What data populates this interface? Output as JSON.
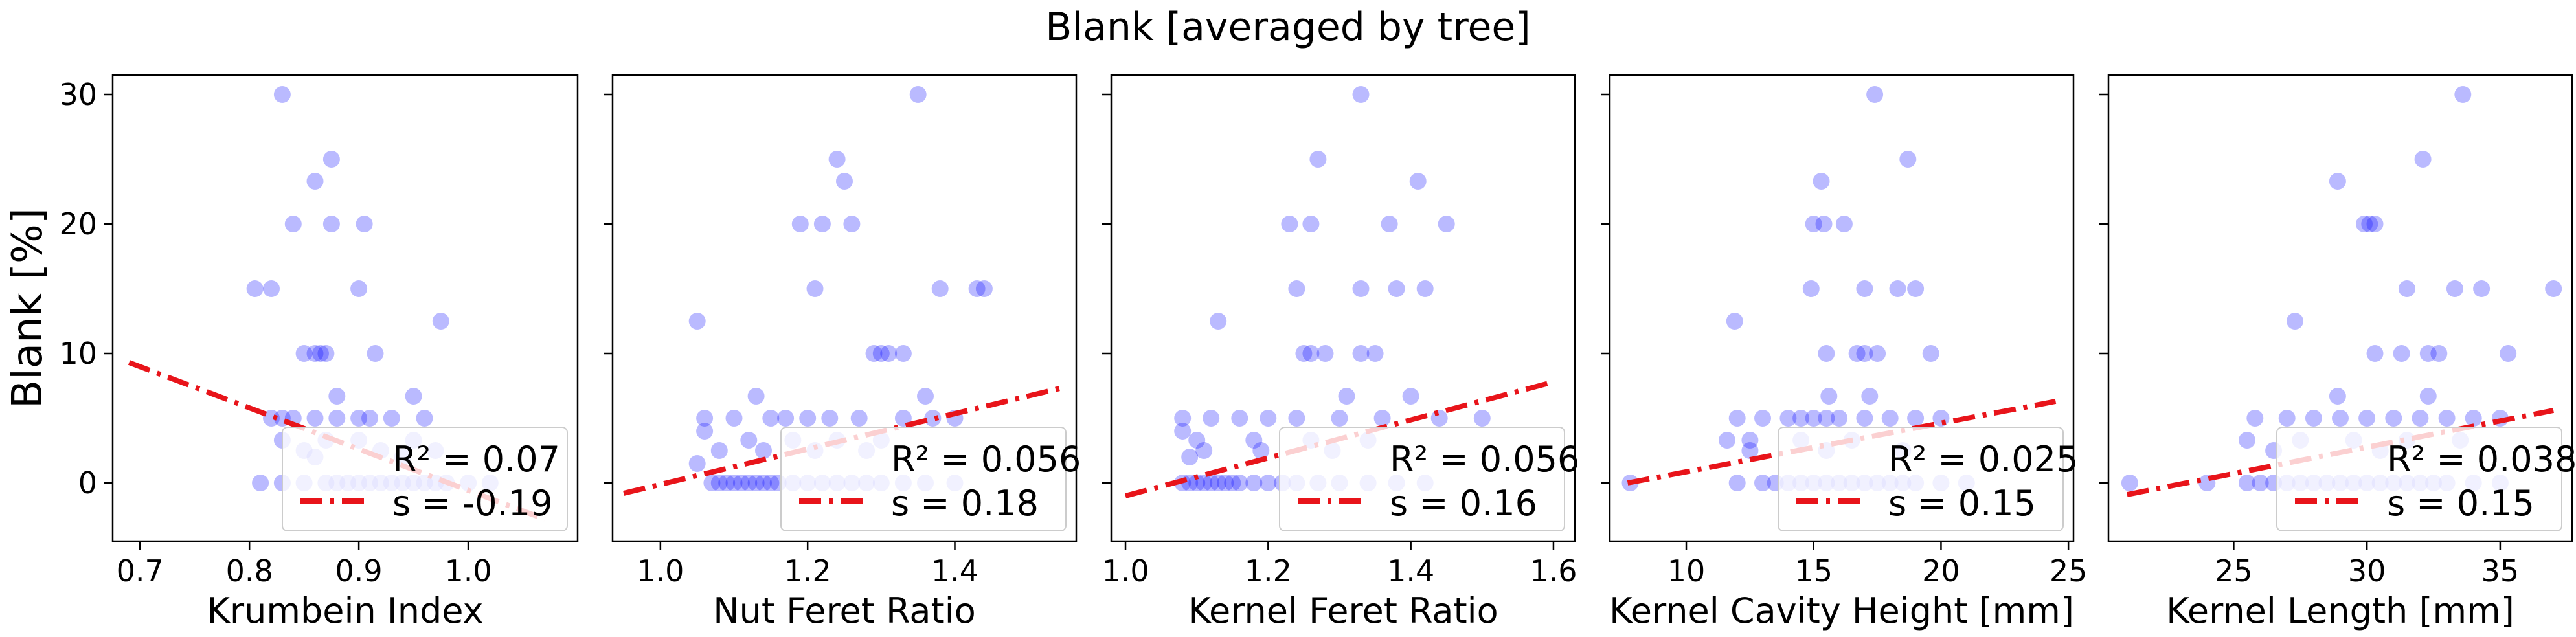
{
  "figure": {
    "title": "Blank [averaged by tree]",
    "ylabel": "Blank [%]"
  },
  "style": {
    "point_color": "#0000ff",
    "fit_color": "#e8141a"
  },
  "chart_data": [
    {
      "type": "scatter",
      "xlabel": "Krumbein Index",
      "ylabel": "Blank [%]",
      "xlim": [
        0.675,
        1.1
      ],
      "ylim": [
        -4.5,
        31.5
      ],
      "xticks": [
        "0.7",
        "0.8",
        "0.9",
        "1.0"
      ],
      "yticks": [
        "0",
        "10",
        "20",
        "30"
      ],
      "r2_text": "R² = 0.07",
      "s_text": "s   = -0.19",
      "fit": {
        "x": [
          0.69,
          1.07
        ],
        "y": [
          9.3,
          -2.8
        ]
      },
      "points": [
        [
          0.83,
          30
        ],
        [
          0.86,
          23.3
        ],
        [
          0.875,
          25
        ],
        [
          0.84,
          20
        ],
        [
          0.875,
          20
        ],
        [
          0.905,
          20
        ],
        [
          0.805,
          15
        ],
        [
          0.82,
          15
        ],
        [
          0.9,
          15
        ],
        [
          0.85,
          10
        ],
        [
          0.86,
          10
        ],
        [
          0.865,
          10
        ],
        [
          0.87,
          10
        ],
        [
          0.915,
          10
        ],
        [
          0.975,
          12.5
        ],
        [
          0.88,
          6.7
        ],
        [
          0.95,
          6.7
        ],
        [
          0.82,
          5
        ],
        [
          0.83,
          5
        ],
        [
          0.84,
          5
        ],
        [
          0.86,
          5
        ],
        [
          0.88,
          5
        ],
        [
          0.9,
          5
        ],
        [
          0.91,
          5
        ],
        [
          0.93,
          5
        ],
        [
          0.96,
          5
        ],
        [
          0.83,
          3.3
        ],
        [
          0.87,
          3.3
        ],
        [
          0.9,
          3.3
        ],
        [
          0.95,
          3.3
        ],
        [
          0.85,
          2.5
        ],
        [
          0.92,
          2.5
        ],
        [
          0.97,
          2.5
        ],
        [
          0.86,
          2
        ],
        [
          0.94,
          2
        ],
        [
          0.81,
          0
        ],
        [
          0.83,
          0
        ],
        [
          0.85,
          0
        ],
        [
          0.87,
          0
        ],
        [
          0.88,
          0
        ],
        [
          0.89,
          0
        ],
        [
          0.9,
          0
        ],
        [
          0.91,
          0
        ],
        [
          0.92,
          0
        ],
        [
          0.93,
          0
        ],
        [
          0.94,
          0
        ],
        [
          0.95,
          0
        ],
        [
          0.96,
          0
        ],
        [
          0.97,
          0
        ],
        [
          0.98,
          0
        ],
        [
          1.0,
          0
        ],
        [
          1.02,
          0
        ]
      ]
    },
    {
      "type": "scatter",
      "xlabel": "Nut Feret Ratio",
      "ylabel": "",
      "xlim": [
        0.935,
        1.565
      ],
      "ylim": [
        -4.5,
        31.5
      ],
      "xticks": [
        "1.0",
        "1.2",
        "1.4"
      ],
      "yticks": [
        "",
        "",
        "",
        ""
      ],
      "r2_text": "R² = 0.056",
      "s_text": "s   = 0.18",
      "fit": {
        "x": [
          0.95,
          1.55
        ],
        "y": [
          -0.8,
          7.4
        ]
      },
      "points": [
        [
          1.35,
          30
        ],
        [
          1.24,
          25
        ],
        [
          1.25,
          23.3
        ],
        [
          1.19,
          20
        ],
        [
          1.22,
          20
        ],
        [
          1.26,
          20
        ],
        [
          1.21,
          15
        ],
        [
          1.38,
          15
        ],
        [
          1.43,
          15
        ],
        [
          1.44,
          15
        ],
        [
          1.05,
          12.5
        ],
        [
          1.29,
          10
        ],
        [
          1.3,
          10
        ],
        [
          1.31,
          10
        ],
        [
          1.33,
          10
        ],
        [
          1.13,
          6.7
        ],
        [
          1.36,
          6.7
        ],
        [
          1.06,
          5
        ],
        [
          1.1,
          5
        ],
        [
          1.15,
          5
        ],
        [
          1.17,
          5
        ],
        [
          1.2,
          5
        ],
        [
          1.23,
          5
        ],
        [
          1.27,
          5
        ],
        [
          1.33,
          5
        ],
        [
          1.37,
          5
        ],
        [
          1.4,
          5
        ],
        [
          1.06,
          4
        ],
        [
          1.12,
          3.3
        ],
        [
          1.18,
          3.3
        ],
        [
          1.24,
          3.3
        ],
        [
          1.3,
          3.3
        ],
        [
          1.08,
          2.5
        ],
        [
          1.14,
          2.5
        ],
        [
          1.21,
          2.5
        ],
        [
          1.28,
          2.5
        ],
        [
          1.05,
          1.5
        ],
        [
          1.07,
          0
        ],
        [
          1.08,
          0
        ],
        [
          1.09,
          0
        ],
        [
          1.1,
          0
        ],
        [
          1.11,
          0
        ],
        [
          1.12,
          0
        ],
        [
          1.13,
          0
        ],
        [
          1.14,
          0
        ],
        [
          1.15,
          0
        ],
        [
          1.16,
          0
        ],
        [
          1.18,
          0
        ],
        [
          1.2,
          0
        ],
        [
          1.22,
          0
        ],
        [
          1.24,
          0
        ],
        [
          1.26,
          0
        ],
        [
          1.28,
          0
        ],
        [
          1.3,
          0
        ],
        [
          1.33,
          0
        ],
        [
          1.36,
          0
        ],
        [
          1.4,
          0
        ]
      ]
    },
    {
      "type": "scatter",
      "xlabel": "Kernel Feret Ratio",
      "ylabel": "",
      "xlim": [
        0.98,
        1.63
      ],
      "ylim": [
        -4.5,
        31.5
      ],
      "xticks": [
        "1.0",
        "1.2",
        "1.4",
        "1.6"
      ],
      "yticks": [
        "",
        "",
        "",
        ""
      ],
      "r2_text": "R² = 0.056",
      "s_text": "s   = 0.16",
      "fit": {
        "x": [
          1.0,
          1.6
        ],
        "y": [
          -1.0,
          7.8
        ]
      },
      "points": [
        [
          1.33,
          30
        ],
        [
          1.27,
          25
        ],
        [
          1.41,
          23.3
        ],
        [
          1.23,
          20
        ],
        [
          1.26,
          20
        ],
        [
          1.37,
          20
        ],
        [
          1.45,
          20
        ],
        [
          1.24,
          15
        ],
        [
          1.33,
          15
        ],
        [
          1.38,
          15
        ],
        [
          1.42,
          15
        ],
        [
          1.13,
          12.5
        ],
        [
          1.25,
          10
        ],
        [
          1.26,
          10
        ],
        [
          1.28,
          10
        ],
        [
          1.33,
          10
        ],
        [
          1.35,
          10
        ],
        [
          1.31,
          6.7
        ],
        [
          1.4,
          6.7
        ],
        [
          1.08,
          5
        ],
        [
          1.12,
          5
        ],
        [
          1.16,
          5
        ],
        [
          1.2,
          5
        ],
        [
          1.24,
          5
        ],
        [
          1.3,
          5
        ],
        [
          1.36,
          5
        ],
        [
          1.44,
          5
        ],
        [
          1.5,
          5
        ],
        [
          1.08,
          4
        ],
        [
          1.1,
          3.3
        ],
        [
          1.18,
          3.3
        ],
        [
          1.26,
          3.3
        ],
        [
          1.34,
          3.3
        ],
        [
          1.11,
          2.5
        ],
        [
          1.19,
          2.5
        ],
        [
          1.29,
          2.5
        ],
        [
          1.09,
          2
        ],
        [
          1.08,
          0
        ],
        [
          1.09,
          0
        ],
        [
          1.1,
          0
        ],
        [
          1.11,
          0
        ],
        [
          1.12,
          0
        ],
        [
          1.13,
          0
        ],
        [
          1.14,
          0
        ],
        [
          1.15,
          0
        ],
        [
          1.16,
          0
        ],
        [
          1.18,
          0
        ],
        [
          1.2,
          0
        ],
        [
          1.22,
          0
        ],
        [
          1.24,
          0
        ],
        [
          1.27,
          0
        ],
        [
          1.3,
          0
        ],
        [
          1.34,
          0
        ],
        [
          1.38,
          0
        ],
        [
          1.42,
          0
        ]
      ]
    },
    {
      "type": "scatter",
      "xlabel": "Kernel Cavity Height [mm]",
      "ylabel": "",
      "xlim": [
        7.0,
        25.2
      ],
      "ylim": [
        -4.5,
        31.5
      ],
      "xticks": [
        "10",
        "15",
        "20",
        "25"
      ],
      "yticks": [
        "",
        "",
        "",
        ""
      ],
      "r2_text": "R² = 0.025",
      "s_text": "s   = 0.15",
      "fit": {
        "x": [
          7.7,
          24.5
        ],
        "y": [
          0,
          6.3
        ]
      },
      "points": [
        [
          17.4,
          30
        ],
        [
          18.7,
          25
        ],
        [
          15.3,
          23.3
        ],
        [
          15.0,
          20
        ],
        [
          15.4,
          20
        ],
        [
          16.2,
          20
        ],
        [
          14.9,
          15
        ],
        [
          17.0,
          15
        ],
        [
          18.3,
          15
        ],
        [
          19.0,
          15
        ],
        [
          11.9,
          12.5
        ],
        [
          15.5,
          10
        ],
        [
          16.7,
          10
        ],
        [
          17.0,
          10
        ],
        [
          17.5,
          10
        ],
        [
          19.6,
          10
        ],
        [
          15.6,
          6.7
        ],
        [
          17.2,
          6.7
        ],
        [
          12.0,
          5
        ],
        [
          13.0,
          5
        ],
        [
          14.0,
          5
        ],
        [
          14.5,
          5
        ],
        [
          15.0,
          5
        ],
        [
          15.5,
          5
        ],
        [
          16.0,
          5
        ],
        [
          17.0,
          5
        ],
        [
          18.0,
          5
        ],
        [
          19.0,
          5
        ],
        [
          20.0,
          5
        ],
        [
          11.6,
          3.3
        ],
        [
          12.5,
          3.3
        ],
        [
          14.5,
          3.3
        ],
        [
          16.5,
          3.3
        ],
        [
          12.5,
          2.5
        ],
        [
          15.5,
          2.5
        ],
        [
          18.5,
          2.5
        ],
        [
          7.8,
          0
        ],
        [
          12.0,
          0
        ],
        [
          13.0,
          0
        ],
        [
          13.5,
          0
        ],
        [
          14.0,
          0
        ],
        [
          14.5,
          0
        ],
        [
          15.0,
          0
        ],
        [
          15.5,
          0
        ],
        [
          16.0,
          0
        ],
        [
          16.5,
          0
        ],
        [
          17.0,
          0
        ],
        [
          17.5,
          0
        ],
        [
          18.0,
          0
        ],
        [
          18.5,
          0
        ],
        [
          19.0,
          0
        ],
        [
          20.0,
          0
        ],
        [
          21.0,
          0
        ]
      ]
    },
    {
      "type": "scatter",
      "xlabel": "Kernel Length [mm]",
      "ylabel": "",
      "xlim": [
        20.3,
        37.7
      ],
      "ylim": [
        -4.5,
        31.5
      ],
      "xticks": [
        "25",
        "30",
        "35"
      ],
      "yticks": [
        "",
        "",
        "",
        ""
      ],
      "r2_text": "R² = 0.038",
      "s_text": "s   = 0.15",
      "fit": {
        "x": [
          21.0,
          37.0
        ],
        "y": [
          -0.9,
          5.6
        ]
      },
      "points": [
        [
          33.6,
          30
        ],
        [
          32.1,
          25
        ],
        [
          28.9,
          23.3
        ],
        [
          29.9,
          20
        ],
        [
          30.1,
          20
        ],
        [
          30.3,
          20
        ],
        [
          31.5,
          15
        ],
        [
          33.3,
          15
        ],
        [
          34.3,
          15
        ],
        [
          37.0,
          15
        ],
        [
          27.3,
          12.5
        ],
        [
          30.3,
          10
        ],
        [
          31.3,
          10
        ],
        [
          32.3,
          10
        ],
        [
          32.7,
          10
        ],
        [
          35.3,
          10
        ],
        [
          28.9,
          6.7
        ],
        [
          32.3,
          6.7
        ],
        [
          25.8,
          5
        ],
        [
          27.0,
          5
        ],
        [
          28.0,
          5
        ],
        [
          29.0,
          5
        ],
        [
          30.0,
          5
        ],
        [
          31.0,
          5
        ],
        [
          32.0,
          5
        ],
        [
          33.0,
          5
        ],
        [
          34.0,
          5
        ],
        [
          35.0,
          5
        ],
        [
          25.5,
          3.3
        ],
        [
          27.5,
          3.3
        ],
        [
          29.5,
          3.3
        ],
        [
          31.5,
          3.3
        ],
        [
          33.5,
          3.3
        ],
        [
          26.5,
          2.5
        ],
        [
          30.5,
          2.5
        ],
        [
          21.1,
          0
        ],
        [
          24.0,
          0
        ],
        [
          25.5,
          0
        ],
        [
          26.0,
          0
        ],
        [
          26.5,
          0
        ],
        [
          27.0,
          0
        ],
        [
          27.5,
          0
        ],
        [
          28.0,
          0
        ],
        [
          28.5,
          0
        ],
        [
          29.0,
          0
        ],
        [
          29.5,
          0
        ],
        [
          30.0,
          0
        ],
        [
          30.5,
          0
        ],
        [
          31.0,
          0
        ],
        [
          31.5,
          0
        ],
        [
          32.0,
          0
        ],
        [
          32.5,
          0
        ],
        [
          33.0,
          0
        ],
        [
          34.0,
          0
        ],
        [
          35.0,
          0
        ]
      ]
    }
  ]
}
